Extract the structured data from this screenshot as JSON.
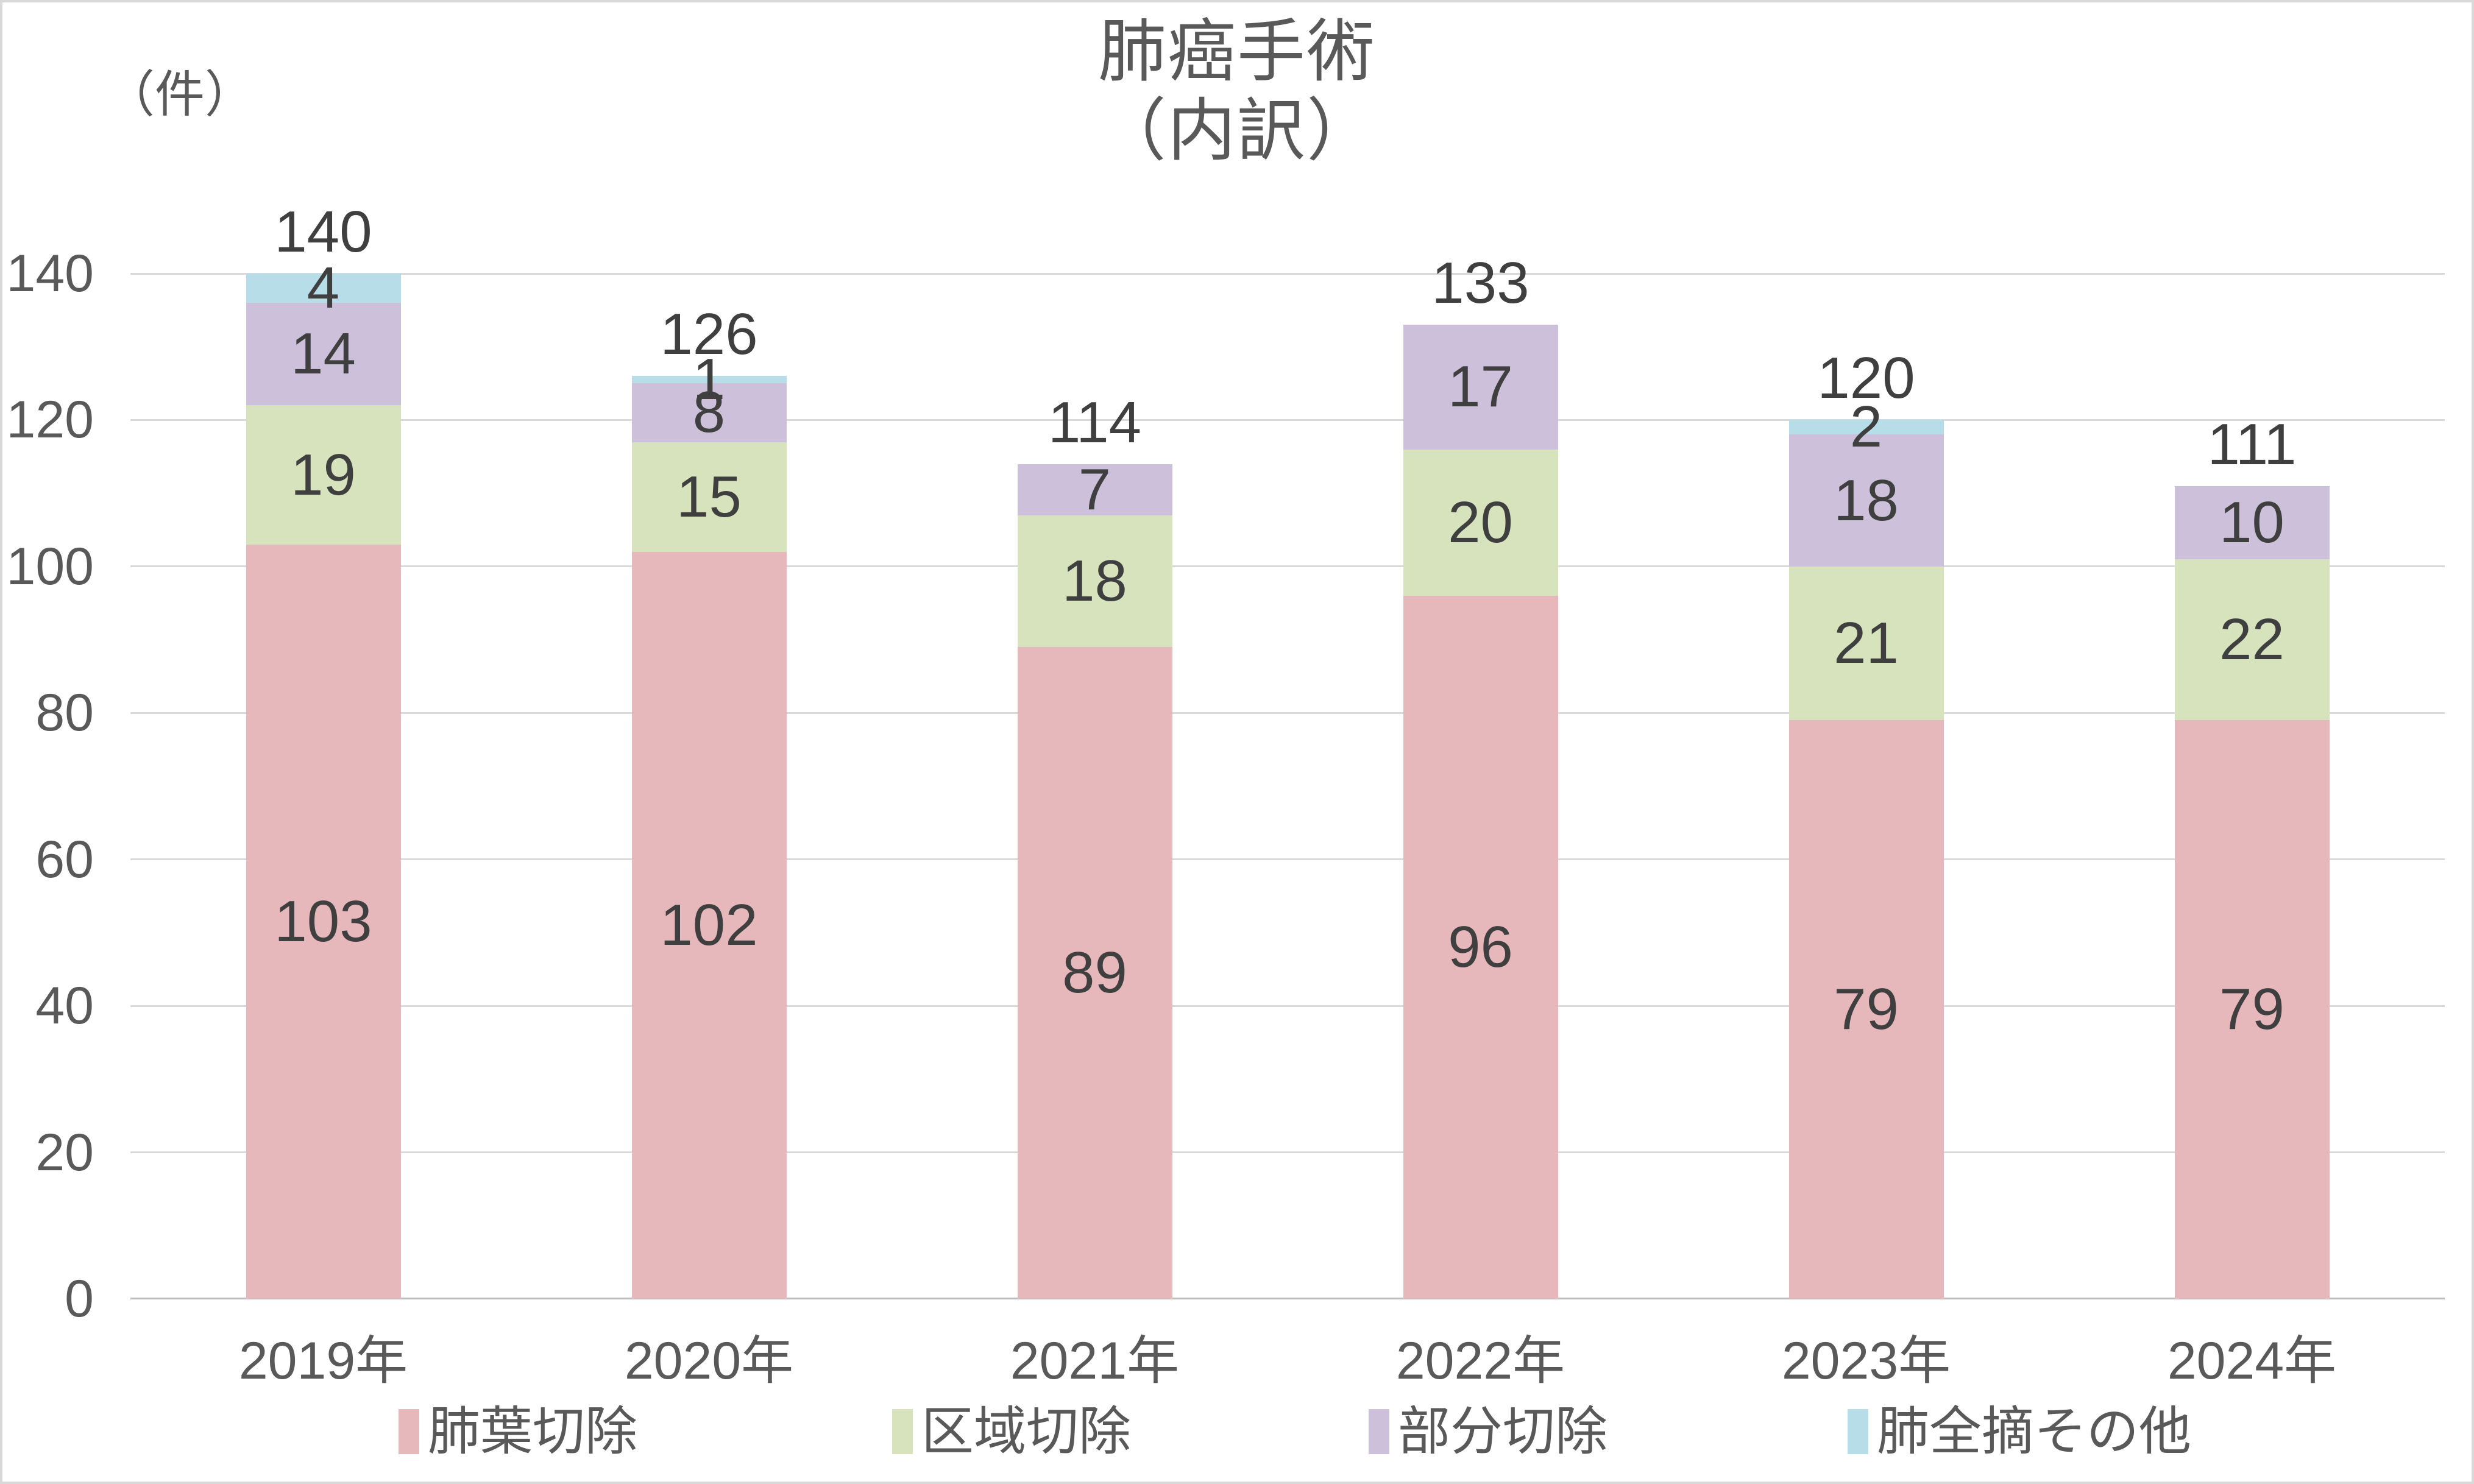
{
  "title": {
    "line1": "肺癌手術",
    "line2": "（内訳）"
  },
  "unit_label": "（件）",
  "colors": {
    "grid": "#d9d9d9",
    "axis_line": "#bfbfbf",
    "axis_text": "#595959",
    "data_label_text": "#3f3f3f",
    "title_text": "#595959",
    "border": "#d9d9d9"
  },
  "chart_data": {
    "type": "bar",
    "stacked": true,
    "title": "肺癌手術（内訳）",
    "ylabel": "（件）",
    "xlabel": "",
    "grid": true,
    "legend_position": "bottom",
    "ylim": [
      0,
      140
    ],
    "y_ticks": [
      0,
      20,
      40,
      60,
      80,
      100,
      120,
      140
    ],
    "categories": [
      "2019年",
      "2020年",
      "2021年",
      "2022年",
      "2023年",
      "2024年"
    ],
    "series": [
      {
        "name": "肺葉切除",
        "color": "#e6b8bb",
        "values": [
          103,
          102,
          89,
          96,
          79,
          79
        ]
      },
      {
        "name": "区域切除",
        "color": "#d6e3bc",
        "values": [
          19,
          15,
          18,
          20,
          21,
          22
        ]
      },
      {
        "name": "部分切除",
        "color": "#ccc0da",
        "values": [
          14,
          8,
          7,
          17,
          18,
          10
        ]
      },
      {
        "name": "肺全摘その他",
        "color": "#b7dee8",
        "values": [
          4,
          1,
          0,
          0,
          2,
          0
        ]
      }
    ],
    "totals": [
      140,
      126,
      114,
      133,
      120,
      111
    ]
  }
}
